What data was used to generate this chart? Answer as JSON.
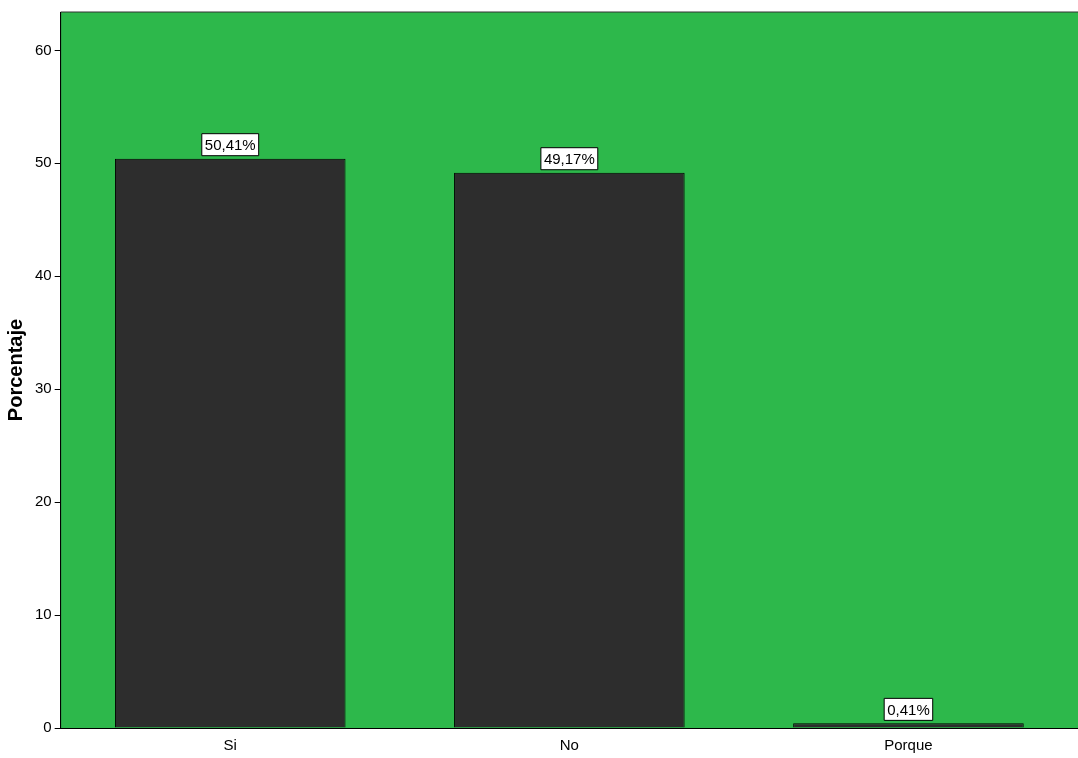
{
  "chart_data": {
    "type": "bar",
    "ylabel": "Porcentaje",
    "categories": [
      "Si",
      "No",
      "Porque"
    ],
    "values": [
      50.41,
      49.17,
      0.41
    ],
    "color": "#2d2d2d",
    "value_labels": [
      "50,41%",
      "49,17%",
      "0,41%"
    ],
    "ylim": [
      0,
      63.4
    ],
    "yticks": [
      0,
      10,
      20,
      30,
      40,
      50,
      60
    ],
    "grid": false,
    "legend": false
  }
}
